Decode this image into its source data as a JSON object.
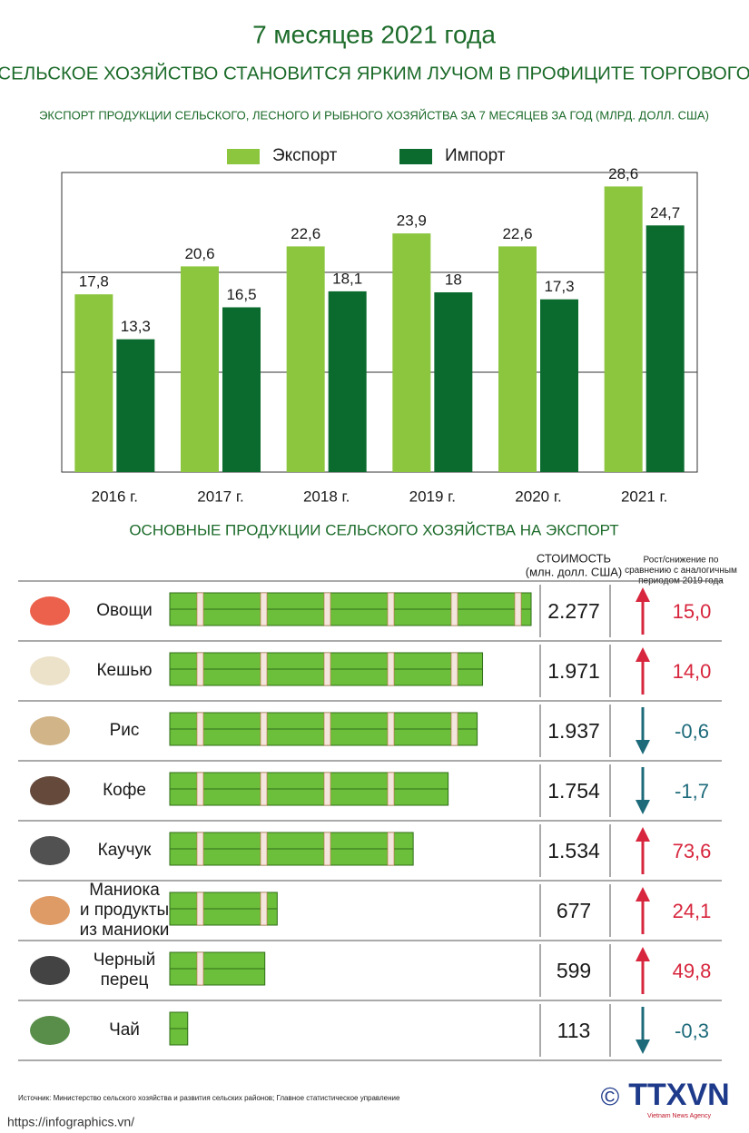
{
  "header": {
    "title": "7 месяцев 2021 года",
    "subtitle": "СЕЛЬСКОЕ ХОЗЯЙСТВО СТАНОВИТСЯ ЯРКИМ ЛУЧОМ В ПРОФИЦИТЕ ТОРГОВОГО"
  },
  "chart_data": [
    {
      "type": "bar",
      "title": "ЭКСПОРТ ПРОДУКЦИИ СЕЛЬСКОГО, ЛЕСНОГО И РЫБНОГО ХОЗЯЙСТВА ЗА 7 МЕСЯЦЕВ ЗА ГОД (МЛРД. ДОЛЛ. США)",
      "categories": [
        "2016 г.",
        "2017 г.",
        "2018 г.",
        "2019 г.",
        "2020 г.",
        "2021 г."
      ],
      "series": [
        {
          "name": "Экспорт",
          "color": "#8cc63f",
          "values": [
            17.8,
            20.6,
            22.6,
            23.9,
            22.6,
            28.6
          ],
          "value_labels": [
            "17,8",
            "20,6",
            "22,6",
            "23,9",
            "22,6",
            "28,6"
          ]
        },
        {
          "name": "Импорт",
          "color": "#0b6b2e",
          "values": [
            13.3,
            16.5,
            18.1,
            18,
            17.3,
            24.7
          ],
          "value_labels": [
            "13,3",
            "16,5",
            "18,1",
            "18",
            "17,3",
            "24,7"
          ]
        }
      ],
      "ylim": [
        0,
        30
      ],
      "yticks": [
        10,
        20
      ],
      "grid": true
    },
    {
      "type": "pictorial-bar",
      "title": "ОСНОВНЫЕ ПРОДУКЦИИ СЕЛЬСКОГО ХОЗЯЙСТВА НА ЭКСПОРТ",
      "value_header": "СТОИМОСТЬ\n(млн. долл. США)",
      "change_header": "Рост/снижение по\nсравнению с аналогичным\nпериодом 2019 года",
      "categories": [
        "Овощи",
        "Кешью",
        "Рис",
        "Кофе",
        "Каучук",
        "Маниока\nи продукты\nиз маниоки",
        "Черный\nперец",
        "Чай"
      ],
      "values": [
        2277,
        1971,
        1937,
        1754,
        1534,
        677,
        599,
        113
      ],
      "value_labels": [
        "2.277",
        "1.971",
        "1.937",
        "1.754",
        "1.534",
        "677",
        "599",
        "113"
      ],
      "changes": [
        15.0,
        14.0,
        -0.6,
        -1.7,
        73.6,
        24.1,
        49.8,
        -0.3
      ],
      "change_labels": [
        "15,0",
        "14,0",
        "-0,6",
        "-1,7",
        "73,6",
        "24,1",
        "49,8",
        "-0,3"
      ],
      "xlim": [
        0,
        2500
      ],
      "color": "#6cbf3a",
      "up_color": "#d7263d",
      "down_color": "#1d6a7a"
    }
  ],
  "footer": {
    "source": "Источник: Министерство сельского хозяйства и развития сельских районов; Главное статистическое управление",
    "url": "https://infographics.vn/",
    "copyright": "©",
    "logo": "TTXVN",
    "logo_sub": "Vietnam News Agency"
  }
}
